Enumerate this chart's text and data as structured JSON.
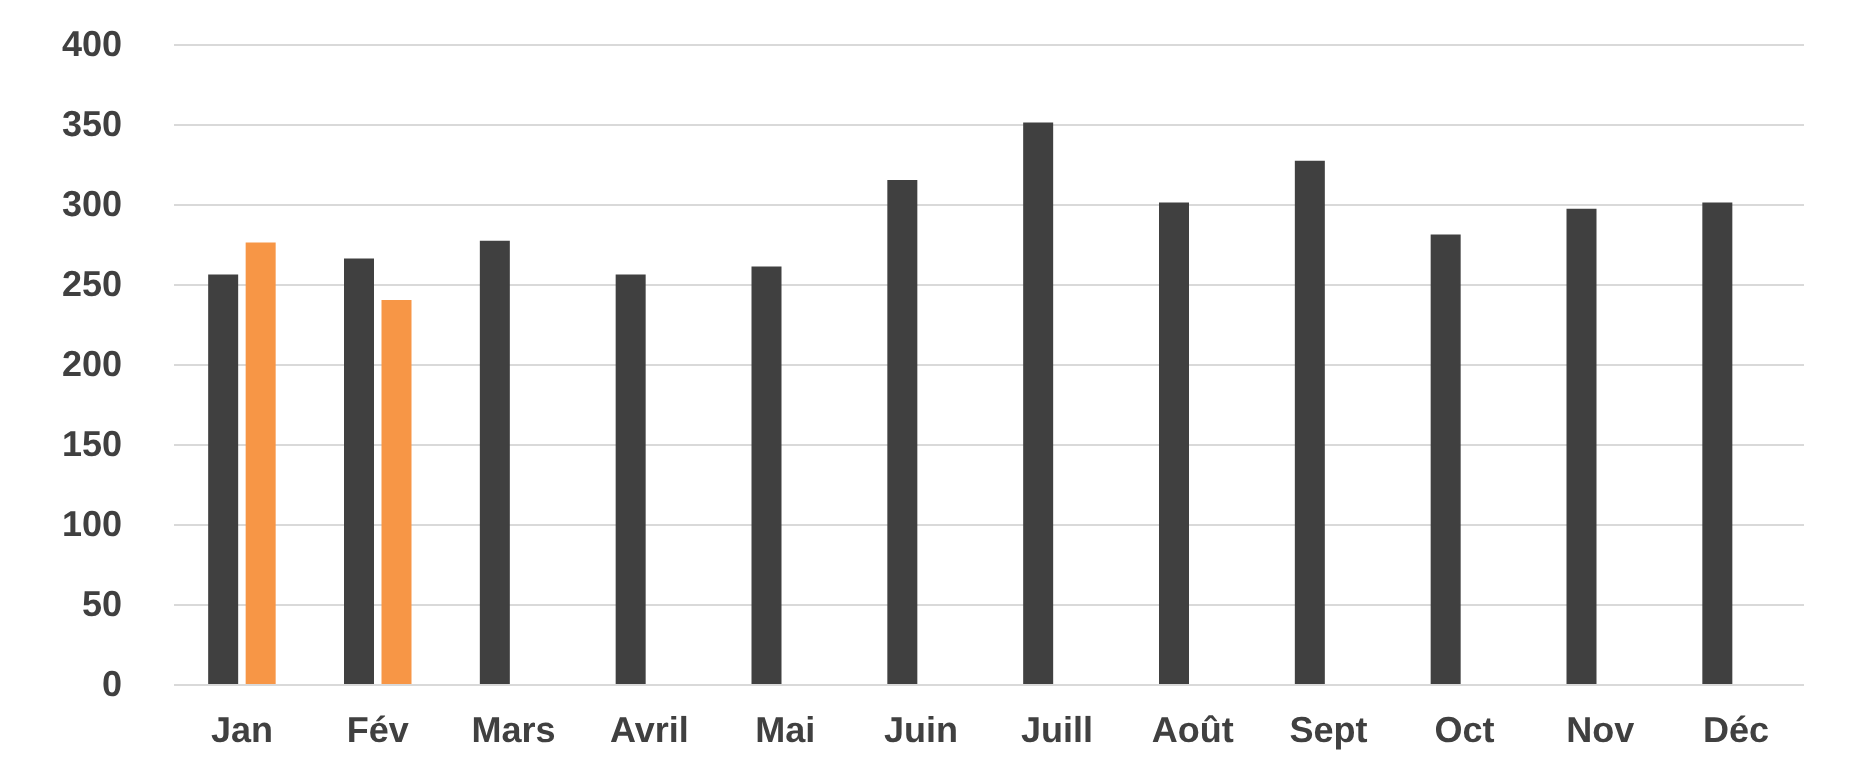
{
  "chart_data": {
    "type": "bar",
    "categories": [
      "Jan",
      "Fév",
      "Mars",
      "Avril",
      "Mai",
      "Juin",
      "Juill",
      "Août",
      "Sept",
      "Oct",
      "Nov",
      "Déc"
    ],
    "series": [
      {
        "color": "#404040",
        "values": [
          256,
          266,
          277,
          256,
          261,
          315,
          351,
          301,
          327,
          281,
          297,
          301
        ]
      },
      {
        "color": "#f79646",
        "values": [
          276,
          240,
          null,
          null,
          null,
          null,
          null,
          null,
          null,
          null,
          null,
          null
        ]
      }
    ],
    "ylim": [
      0,
      400
    ],
    "yticks": [
      0,
      50,
      100,
      150,
      200,
      250,
      300,
      350,
      400
    ],
    "grid": "y"
  }
}
